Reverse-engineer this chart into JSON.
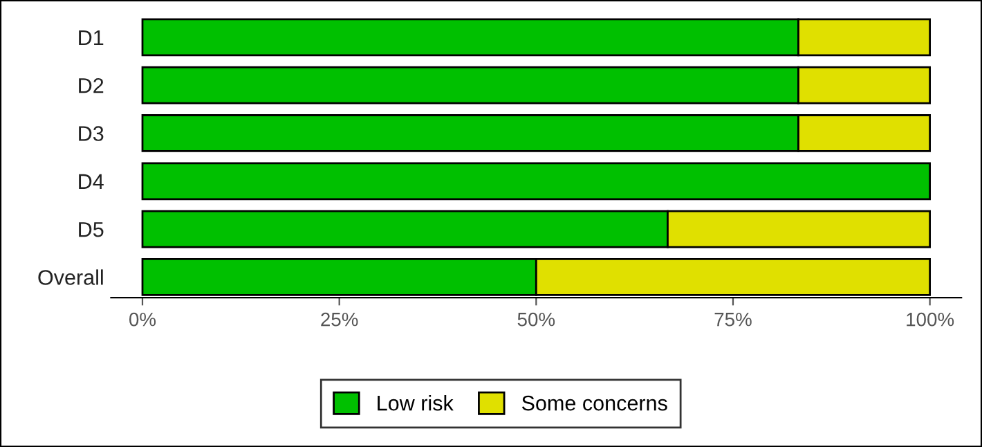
{
  "chart_data": {
    "type": "bar",
    "orientation": "horizontal",
    "stacked": true,
    "categories": [
      "D1",
      "D2",
      "D3",
      "D4",
      "D5",
      "Overall"
    ],
    "series": [
      {
        "name": "Low risk",
        "color": "#00c000",
        "values": [
          83.3,
          83.3,
          83.3,
          100,
          66.7,
          50
        ]
      },
      {
        "name": "Some concerns",
        "color": "#e0e000",
        "values": [
          16.7,
          16.7,
          16.7,
          null,
          33.3,
          50
        ]
      }
    ],
    "xlim": [
      -4,
      104
    ],
    "xticks": [
      {
        "value": 0,
        "label": "0%"
      },
      {
        "value": 25,
        "label": "25%"
      },
      {
        "value": 50,
        "label": "50%"
      },
      {
        "value": 75,
        "label": "75%"
      },
      {
        "value": 100,
        "label": "100%"
      }
    ],
    "grid": false,
    "legend": "bottom"
  }
}
